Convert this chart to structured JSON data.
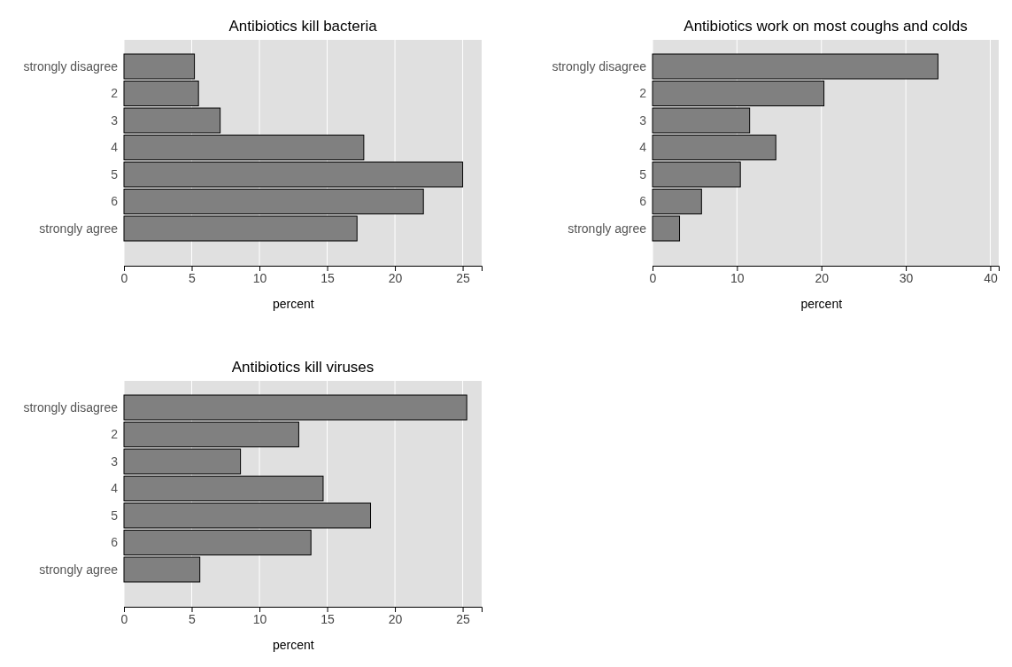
{
  "chart_data": [
    {
      "type": "bar",
      "orientation": "horizontal",
      "title": "Antibiotics kill bacteria",
      "xlabel": "percent",
      "categories": [
        "strongly disagree",
        "2",
        "3",
        "4",
        "5",
        "6",
        "strongly agree"
      ],
      "values": [
        5.2,
        5.5,
        7.1,
        17.7,
        25.0,
        22.1,
        17.2
      ],
      "color": "#808080",
      "xlim": [
        0,
        26.4
      ],
      "xticks": [
        0,
        5,
        10,
        15,
        20,
        25
      ],
      "grid": "x"
    },
    {
      "type": "bar",
      "orientation": "horizontal",
      "title": "Antibiotics work on most coughs and colds",
      "xlabel": "percent",
      "categories": [
        "strongly disagree",
        "2",
        "3",
        "4",
        "5",
        "6",
        "strongly agree"
      ],
      "values": [
        33.8,
        20.3,
        11.5,
        14.6,
        10.4,
        5.8,
        3.2
      ],
      "color": "#808080",
      "xlim": [
        0,
        41
      ],
      "xticks": [
        0,
        10,
        20,
        30,
        40
      ],
      "grid": "x"
    },
    {
      "type": "bar",
      "orientation": "horizontal",
      "title": "Antibiotics kill viruses",
      "xlabel": "percent",
      "categories": [
        "strongly disagree",
        "2",
        "3",
        "4",
        "5",
        "6",
        "strongly agree"
      ],
      "values": [
        25.3,
        12.9,
        8.6,
        14.7,
        18.2,
        13.8,
        5.6
      ],
      "color": "#808080",
      "xlim": [
        0,
        26.4
      ],
      "xticks": [
        0,
        5,
        10,
        15,
        20,
        25
      ],
      "grid": "x"
    }
  ]
}
